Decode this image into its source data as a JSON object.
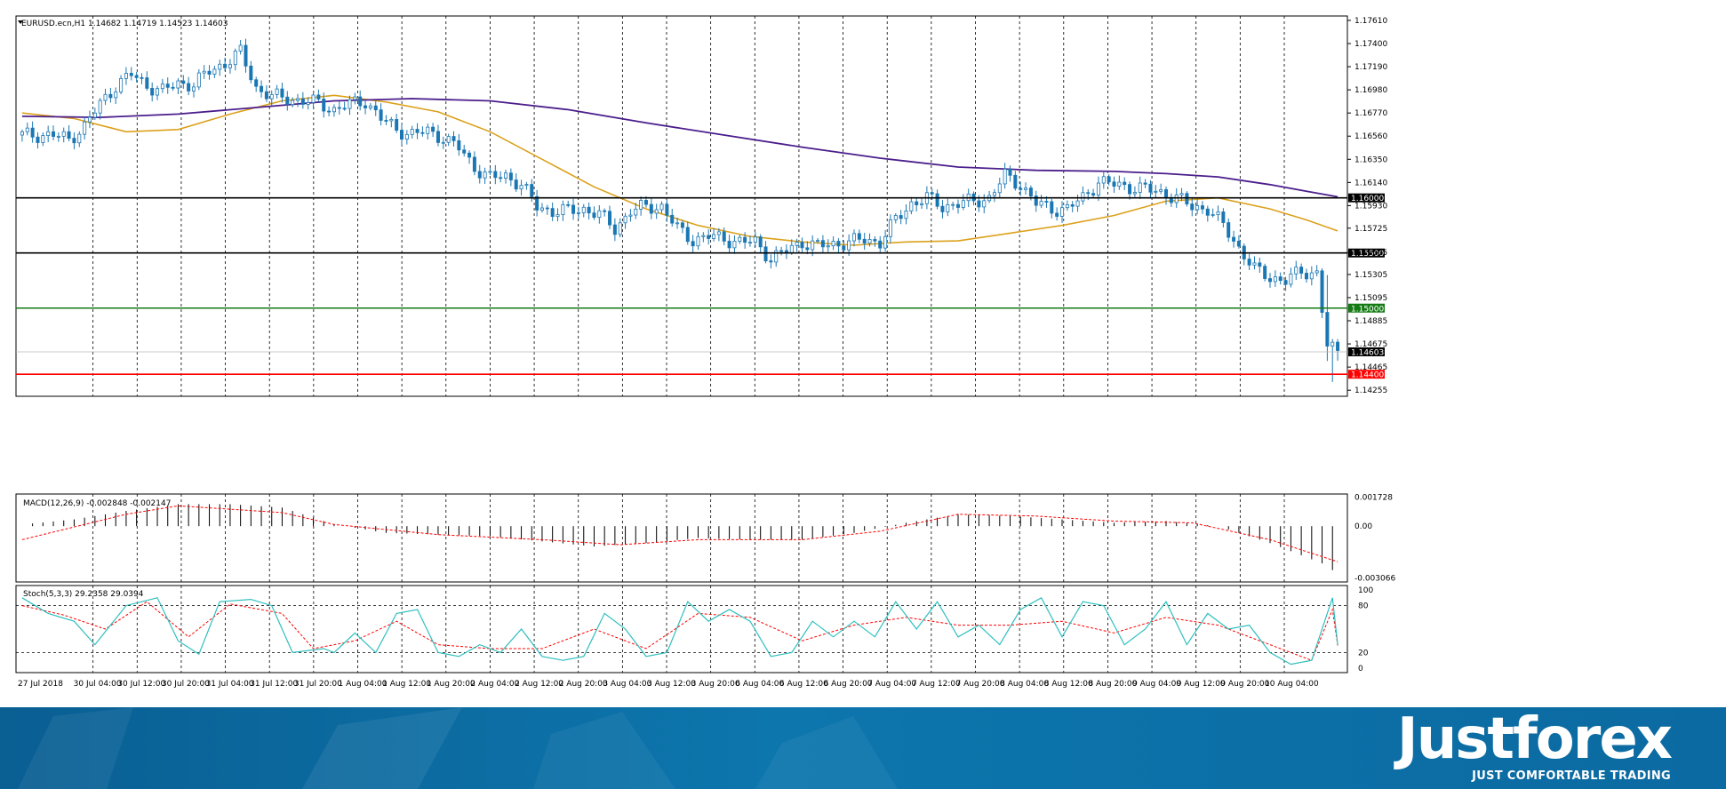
{
  "header_text": "EURUSD.ecn,H1  1.14682 1.14719 1.14523 1.14603",
  "macd_label": "MACD(12,26,9) -0.002848 -0.002147",
  "stoch_label": "Stoch(5,3,3) 29.2358 29.0394",
  "brand": {
    "name": "Justforex",
    "tagline": "JUST COMFORTABLE TRADING"
  },
  "colors": {
    "candle": "#1b77b3",
    "ma_fast": "#dca11c",
    "ma_slow": "#4b1e8c",
    "level_black": "#000000",
    "level_green": "#147a14",
    "level_red": "#ff0000",
    "macd_signal": "#ff0000",
    "stoch_main": "#2fbfbf",
    "stoch_signal": "#ff0000"
  },
  "chart_data": [
    {
      "type": "candlestick",
      "symbol": "EURUSD.ecn",
      "timeframe": "H1",
      "ohlc_current": {
        "open": 1.14682,
        "high": 1.14719,
        "low": 1.14523,
        "close": 1.14603
      },
      "ylim": [
        1.142,
        1.1765
      ],
      "y_ticks": [
        "1.17610",
        "1.17400",
        "1.17190",
        "1.16980",
        "1.16770",
        "1.16560",
        "1.16350",
        "1.16140",
        "1.15930",
        "1.15725",
        "1.15505",
        "1.15305",
        "1.15095",
        "1.14885",
        "1.14675",
        "1.14465",
        "1.14255"
      ],
      "x_ticks": [
        "27 Jul 2018",
        "30 Jul 04:00",
        "30 Jul 12:00",
        "30 Jul 20:00",
        "31 Jul 04:00",
        "31 Jul 12:00",
        "31 Jul 20:00",
        "1 Aug 04:00",
        "1 Aug 12:00",
        "1 Aug 20:00",
        "2 Aug 04:00",
        "2 Aug 12:00",
        "2 Aug 20:00",
        "3 Aug 04:00",
        "3 Aug 12:00",
        "3 Aug 20:00",
        "6 Aug 04:00",
        "6 Aug 12:00",
        "6 Aug 20:00",
        "7 Aug 04:00",
        "7 Aug 12:00",
        "7 Aug 20:00",
        "8 Aug 04:00",
        "8 Aug 12:00",
        "8 Aug 20:00",
        "9 Aug 04:00",
        "9 Aug 12:00",
        "9 Aug 20:00",
        "10 Aug 04:00"
      ],
      "levels": [
        {
          "value": 1.16,
          "label": "1.16000",
          "color": "#000000"
        },
        {
          "value": 1.155,
          "label": "1.15500",
          "color": "#000000"
        },
        {
          "value": 1.15,
          "label": "1.15000",
          "color": "#147a14"
        },
        {
          "value": 1.144,
          "label": "1.14400",
          "color": "#ff0000"
        }
      ],
      "current_price": {
        "value": 1.14603,
        "label": "1.14603"
      },
      "close_path": [
        [
          0,
          1.1657
        ],
        [
          6,
          1.1657
        ],
        [
          9,
          1.1653
        ],
        [
          12,
          1.1665
        ],
        [
          15,
          1.1685
        ],
        [
          18,
          1.1702
        ],
        [
          21,
          1.1712
        ],
        [
          24,
          1.1702
        ],
        [
          27,
          1.1697
        ],
        [
          30,
          1.1704
        ],
        [
          33,
          1.1703
        ],
        [
          36,
          1.1715
        ],
        [
          39,
          1.1722
        ],
        [
          42,
          1.1732
        ],
        [
          45,
          1.17
        ],
        [
          48,
          1.1692
        ],
        [
          51,
          1.169
        ],
        [
          54,
          1.1688
        ],
        [
          57,
          1.1686
        ],
        [
          60,
          1.168
        ],
        [
          63,
          1.1685
        ],
        [
          66,
          1.1688
        ],
        [
          69,
          1.1672
        ],
        [
          72,
          1.1662
        ],
        [
          75,
          1.1658
        ],
        [
          78,
          1.166
        ],
        [
          81,
          1.1655
        ],
        [
          84,
          1.1645
        ],
        [
          87,
          1.1628
        ],
        [
          90,
          1.1618
        ],
        [
          93,
          1.162
        ],
        [
          96,
          1.1612
        ],
        [
          99,
          1.1592
        ],
        [
          102,
          1.1588
        ],
        [
          105,
          1.1588
        ],
        [
          108,
          1.159
        ],
        [
          111,
          1.1585
        ],
        [
          114,
          1.1572
        ],
        [
          117,
          1.1588
        ],
        [
          120,
          1.1592
        ],
        [
          123,
          1.1592
        ],
        [
          126,
          1.1572
        ],
        [
          129,
          1.1562
        ],
        [
          132,
          1.1565
        ],
        [
          135,
          1.1563
        ],
        [
          138,
          1.156
        ],
        [
          141,
          1.156
        ],
        [
          144,
          1.1545
        ],
        [
          147,
          1.1552
        ],
        [
          150,
          1.156
        ],
        [
          153,
          1.1556
        ],
        [
          156,
          1.1558
        ],
        [
          159,
          1.156
        ],
        [
          162,
          1.1562
        ],
        [
          165,
          1.156
        ],
        [
          168,
          1.158
        ],
        [
          171,
          1.1595
        ],
        [
          174,
          1.16
        ],
        [
          177,
          1.1592
        ],
        [
          180,
          1.1595
        ],
        [
          183,
          1.1597
        ],
        [
          186,
          1.16
        ],
        [
          189,
          1.162
        ],
        [
          192,
          1.1612
        ],
        [
          195,
          1.1595
        ],
        [
          198,
          1.159
        ],
        [
          201,
          1.159
        ],
        [
          204,
          1.16
        ],
        [
          207,
          1.1615
        ],
        [
          210,
          1.1612
        ],
        [
          213,
          1.161
        ],
        [
          216,
          1.1608
        ],
        [
          219,
          1.1605
        ],
        [
          222,
          1.16
        ],
        [
          225,
          1.1592
        ],
        [
          228,
          1.159
        ],
        [
          231,
          1.1575
        ],
        [
          234,
          1.1555
        ],
        [
          237,
          1.1535
        ],
        [
          240,
          1.1528
        ],
        [
          243,
          1.1525
        ],
        [
          246,
          1.1533
        ],
        [
          249,
          1.1532
        ],
        [
          251,
          1.1465
        ],
        [
          253,
          1.146
        ]
      ],
      "n_bars": 254,
      "series": [
        {
          "name": "",
          "type": "ma",
          "points": [
            [
              0,
              1.1677
            ],
            [
              10,
              1.1672
            ],
            [
              20,
              1.166
            ],
            [
              30,
              1.1662
            ],
            [
              40,
              1.1676
            ],
            [
              50,
              1.1688
            ],
            [
              60,
              1.1693
            ],
            [
              70,
              1.1687
            ],
            [
              80,
              1.1678
            ],
            [
              90,
              1.166
            ],
            [
              100,
              1.1635
            ],
            [
              110,
              1.161
            ],
            [
              120,
              1.159
            ],
            [
              130,
              1.1575
            ],
            [
              140,
              1.1565
            ],
            [
              150,
              1.156
            ],
            [
              160,
              1.1557
            ],
            [
              170,
              1.156
            ],
            [
              180,
              1.1561
            ],
            [
              190,
              1.1568
            ],
            [
              200,
              1.1575
            ],
            [
              210,
              1.1584
            ],
            [
              220,
              1.1597
            ],
            [
              230,
              1.16
            ],
            [
              240,
              1.159
            ],
            [
              247,
              1.158
            ],
            [
              253,
              1.157
            ]
          ]
        },
        {
          "name": "",
          "type": "ma",
          "points": [
            [
              0,
              1.1674
            ],
            [
              15,
              1.1673
            ],
            [
              30,
              1.1676
            ],
            [
              45,
              1.1682
            ],
            [
              60,
              1.1688
            ],
            [
              75,
              1.169
            ],
            [
              90,
              1.1688
            ],
            [
              105,
              1.168
            ],
            [
              120,
              1.1668
            ],
            [
              135,
              1.1657
            ],
            [
              150,
              1.1646
            ],
            [
              165,
              1.1636
            ],
            [
              180,
              1.1628
            ],
            [
              195,
              1.1625
            ],
            [
              210,
              1.1624
            ],
            [
              220,
              1.1622
            ],
            [
              230,
              1.1619
            ],
            [
              240,
              1.1612
            ],
            [
              247,
              1.1606
            ],
            [
              253,
              1.1601
            ]
          ]
        }
      ]
    },
    {
      "type": "histogram",
      "title": "MACD(12,26,9)",
      "main": -0.002848,
      "signal": -0.002147,
      "ylim": [
        -0.0033,
        0.0019
      ],
      "y_ticks": [
        "0.001728",
        "0.00",
        "-0.003066"
      ],
      "points": [
        [
          0,
          0.0001
        ],
        [
          10,
          0.0004
        ],
        [
          20,
          0.0009
        ],
        [
          30,
          0.0013
        ],
        [
          40,
          0.0013
        ],
        [
          50,
          0.0011
        ],
        [
          60,
          0.0001
        ],
        [
          70,
          -0.0004
        ],
        [
          80,
          -0.0005
        ],
        [
          90,
          -0.0006
        ],
        [
          100,
          -0.0009
        ],
        [
          110,
          -0.0012
        ],
        [
          120,
          -0.001
        ],
        [
          130,
          -0.0007
        ],
        [
          140,
          -0.0008
        ],
        [
          150,
          -0.0008
        ],
        [
          160,
          -0.0004
        ],
        [
          170,
          0.0002
        ],
        [
          180,
          0.0007
        ],
        [
          190,
          0.0006
        ],
        [
          200,
          0.0004
        ],
        [
          210,
          0.0002
        ],
        [
          220,
          0.0003
        ],
        [
          230,
          0.0
        ],
        [
          240,
          -0.001
        ],
        [
          250,
          -0.0022
        ],
        [
          253,
          -0.0028
        ]
      ],
      "signal_points": [
        [
          0,
          -0.0008
        ],
        [
          20,
          0.0007
        ],
        [
          30,
          0.0012
        ],
        [
          50,
          0.0008
        ],
        [
          60,
          0.0001
        ],
        [
          80,
          -0.0005
        ],
        [
          100,
          -0.0008
        ],
        [
          115,
          -0.0011
        ],
        [
          130,
          -0.0008
        ],
        [
          150,
          -0.0008
        ],
        [
          165,
          -0.0003
        ],
        [
          180,
          0.0007
        ],
        [
          195,
          0.0006
        ],
        [
          210,
          0.0003
        ],
        [
          225,
          0.0002
        ],
        [
          240,
          -0.0008
        ],
        [
          253,
          -0.0021
        ]
      ]
    },
    {
      "type": "line",
      "title": "Stoch(5,3,3)",
      "main": 29.2358,
      "signal": 29.0394,
      "ylim": [
        0,
        100
      ],
      "y_ticks": [
        "100",
        "80",
        "20",
        "0"
      ],
      "main_points": [
        [
          0,
          90
        ],
        [
          5,
          70
        ],
        [
          10,
          60
        ],
        [
          14,
          30
        ],
        [
          20,
          80
        ],
        [
          26,
          90
        ],
        [
          30,
          35
        ],
        [
          34,
          18
        ],
        [
          38,
          85
        ],
        [
          44,
          88
        ],
        [
          48,
          80
        ],
        [
          52,
          20
        ],
        [
          58,
          25
        ],
        [
          60,
          20
        ],
        [
          64,
          45
        ],
        [
          68,
          20
        ],
        [
          72,
          70
        ],
        [
          76,
          75
        ],
        [
          80,
          20
        ],
        [
          84,
          15
        ],
        [
          88,
          30
        ],
        [
          92,
          20
        ],
        [
          96,
          50
        ],
        [
          100,
          15
        ],
        [
          104,
          10
        ],
        [
          108,
          15
        ],
        [
          112,
          70
        ],
        [
          116,
          50
        ],
        [
          120,
          15
        ],
        [
          124,
          20
        ],
        [
          128,
          85
        ],
        [
          132,
          60
        ],
        [
          136,
          75
        ],
        [
          140,
          60
        ],
        [
          144,
          15
        ],
        [
          148,
          20
        ],
        [
          152,
          60
        ],
        [
          156,
          40
        ],
        [
          160,
          60
        ],
        [
          164,
          40
        ],
        [
          168,
          85
        ],
        [
          172,
          50
        ],
        [
          176,
          85
        ],
        [
          180,
          40
        ],
        [
          184,
          55
        ],
        [
          188,
          30
        ],
        [
          192,
          75
        ],
        [
          196,
          90
        ],
        [
          200,
          40
        ],
        [
          204,
          85
        ],
        [
          208,
          80
        ],
        [
          212,
          30
        ],
        [
          216,
          50
        ],
        [
          220,
          85
        ],
        [
          224,
          30
        ],
        [
          228,
          70
        ],
        [
          232,
          50
        ],
        [
          236,
          55
        ],
        [
          240,
          20
        ],
        [
          244,
          5
        ],
        [
          248,
          10
        ],
        [
          252,
          90
        ],
        [
          253,
          30
        ]
      ],
      "signal_points": [
        [
          0,
          80
        ],
        [
          8,
          68
        ],
        [
          16,
          50
        ],
        [
          24,
          85
        ],
        [
          32,
          40
        ],
        [
          40,
          82
        ],
        [
          50,
          70
        ],
        [
          56,
          25
        ],
        [
          64,
          35
        ],
        [
          72,
          60
        ],
        [
          80,
          30
        ],
        [
          90,
          25
        ],
        [
          100,
          25
        ],
        [
          110,
          50
        ],
        [
          120,
          25
        ],
        [
          130,
          70
        ],
        [
          140,
          65
        ],
        [
          150,
          35
        ],
        [
          160,
          55
        ],
        [
          170,
          65
        ],
        [
          180,
          55
        ],
        [
          190,
          55
        ],
        [
          200,
          60
        ],
        [
          210,
          45
        ],
        [
          220,
          65
        ],
        [
          230,
          55
        ],
        [
          240,
          30
        ],
        [
          248,
          10
        ],
        [
          252,
          75
        ],
        [
          253,
          29
        ]
      ]
    }
  ]
}
